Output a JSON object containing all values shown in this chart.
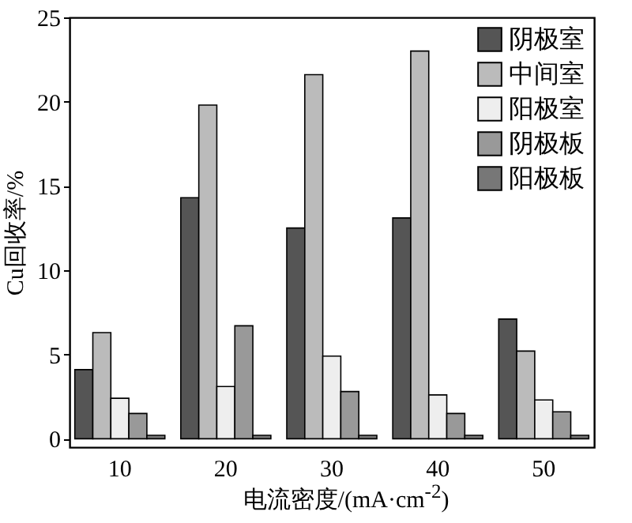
{
  "chart_data": {
    "type": "bar",
    "xlabel": "电流密度/(mA·cm$^{-2}$)",
    "ylabel": "Cu回收率/%",
    "categories": [
      "10",
      "20",
      "30",
      "40",
      "50"
    ],
    "series": [
      {
        "name": "阴极室",
        "color": "#555555",
        "values": [
          4.1,
          14.3,
          12.5,
          13.1,
          7.1
        ]
      },
      {
        "name": "中间室",
        "color": "#bbbbbb",
        "values": [
          6.3,
          19.8,
          21.6,
          23.0,
          5.2
        ]
      },
      {
        "name": "阳极室",
        "color": "#eeeeee",
        "values": [
          2.4,
          3.1,
          4.9,
          2.6,
          2.3
        ]
      },
      {
        "name": "阴极板",
        "color": "#999999",
        "values": [
          1.5,
          6.7,
          2.8,
          1.5,
          1.6
        ]
      },
      {
        "name": "阳极板",
        "color": "#777777",
        "values": [
          0.2,
          0.2,
          0.2,
          0.2,
          0.2
        ]
      }
    ],
    "ylim": [
      -0.5,
      25
    ],
    "yticks": [
      0,
      5,
      10,
      15,
      20,
      25
    ],
    "grid": false,
    "legend": "top right"
  }
}
